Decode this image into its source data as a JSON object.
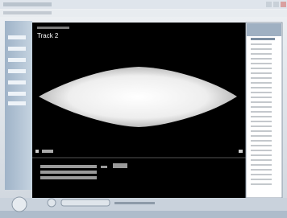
{
  "track": {
    "title": "Track 2"
  }
}
